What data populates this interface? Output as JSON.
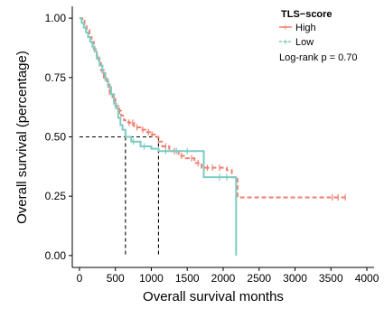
{
  "chart_data": {
    "type": "line",
    "subtype": "kaplan-meier",
    "xlabel": "Overall survival months",
    "ylabel": "Overall survival (percentage)",
    "xlim": [
      -100,
      4100
    ],
    "ylim": [
      -0.05,
      1.05
    ],
    "x_ticks": [
      0,
      500,
      1000,
      1500,
      2000,
      2500,
      3000,
      3500,
      4000
    ],
    "y_ticks": [
      0.0,
      0.25,
      0.5,
      0.75,
      1.0
    ],
    "y_tick_labels": [
      "0.00",
      "0.25",
      "0.50",
      "0.75",
      "1.00"
    ],
    "grid": false,
    "legend": {
      "title": "TLS−score",
      "placement": "top-right",
      "entries": [
        "High",
        "Low"
      ]
    },
    "annotation": "Log-rank p = 0.70",
    "median_lines": {
      "y": 0.5,
      "x": [
        640,
        1100
      ],
      "color": "#000000",
      "style": "dashed"
    },
    "series": [
      {
        "name": "High",
        "color": "#F07F6E",
        "style": "dashed",
        "steps": [
          [
            0,
            1.0
          ],
          [
            40,
            0.99
          ],
          [
            70,
            0.97
          ],
          [
            100,
            0.95
          ],
          [
            140,
            0.92
          ],
          [
            170,
            0.9
          ],
          [
            200,
            0.87
          ],
          [
            240,
            0.84
          ],
          [
            270,
            0.81
          ],
          [
            300,
            0.78
          ],
          [
            340,
            0.75
          ],
          [
            380,
            0.72
          ],
          [
            420,
            0.69
          ],
          [
            460,
            0.66
          ],
          [
            500,
            0.63
          ],
          [
            540,
            0.61
          ],
          [
            580,
            0.59
          ],
          [
            620,
            0.57
          ],
          [
            680,
            0.56
          ],
          [
            760,
            0.54
          ],
          [
            850,
            0.53
          ],
          [
            920,
            0.52
          ],
          [
            1000,
            0.51
          ],
          [
            1050,
            0.5
          ],
          [
            1100,
            0.48
          ],
          [
            1150,
            0.46
          ],
          [
            1250,
            0.44
          ],
          [
            1380,
            0.42
          ],
          [
            1480,
            0.41
          ],
          [
            1600,
            0.39
          ],
          [
            1700,
            0.37
          ],
          [
            2050,
            0.36
          ],
          [
            2120,
            0.33
          ],
          [
            2200,
            0.245
          ],
          [
            3700,
            0.245
          ]
        ],
        "censors": [
          [
            250,
            0.84
          ],
          [
            420,
            0.69
          ],
          [
            560,
            0.61
          ],
          [
            690,
            0.56
          ],
          [
            740,
            0.56
          ],
          [
            800,
            0.54
          ],
          [
            880,
            0.53
          ],
          [
            960,
            0.52
          ],
          [
            1010,
            0.51
          ],
          [
            1200,
            0.46
          ],
          [
            1320,
            0.44
          ],
          [
            1420,
            0.42
          ],
          [
            1560,
            0.41
          ],
          [
            1650,
            0.39
          ],
          [
            1780,
            0.37
          ],
          [
            1850,
            0.37
          ],
          [
            1950,
            0.37
          ],
          [
            3520,
            0.245
          ],
          [
            3600,
            0.245
          ],
          [
            3700,
            0.245
          ]
        ]
      },
      {
        "name": "Low",
        "color": "#7DCBC3",
        "style": "solid",
        "steps": [
          [
            0,
            1.0
          ],
          [
            30,
            0.98
          ],
          [
            60,
            0.96
          ],
          [
            90,
            0.94
          ],
          [
            120,
            0.92
          ],
          [
            150,
            0.9
          ],
          [
            180,
            0.88
          ],
          [
            210,
            0.86
          ],
          [
            240,
            0.83
          ],
          [
            280,
            0.8
          ],
          [
            320,
            0.77
          ],
          [
            360,
            0.74
          ],
          [
            400,
            0.71
          ],
          [
            440,
            0.68
          ],
          [
            480,
            0.64
          ],
          [
            510,
            0.62
          ],
          [
            540,
            0.58
          ],
          [
            570,
            0.55
          ],
          [
            600,
            0.53
          ],
          [
            640,
            0.5
          ],
          [
            720,
            0.48
          ],
          [
            850,
            0.46
          ],
          [
            1000,
            0.45
          ],
          [
            1100,
            0.44
          ],
          [
            1730,
            0.33
          ],
          [
            2150,
            0.33
          ],
          [
            2180,
            0.0
          ]
        ],
        "censors": [
          [
            750,
            0.48
          ],
          [
            900,
            0.46
          ],
          [
            1200,
            0.44
          ],
          [
            1350,
            0.44
          ],
          [
            1500,
            0.44
          ],
          [
            1950,
            0.33
          ],
          [
            2050,
            0.33
          ]
        ]
      }
    ]
  }
}
